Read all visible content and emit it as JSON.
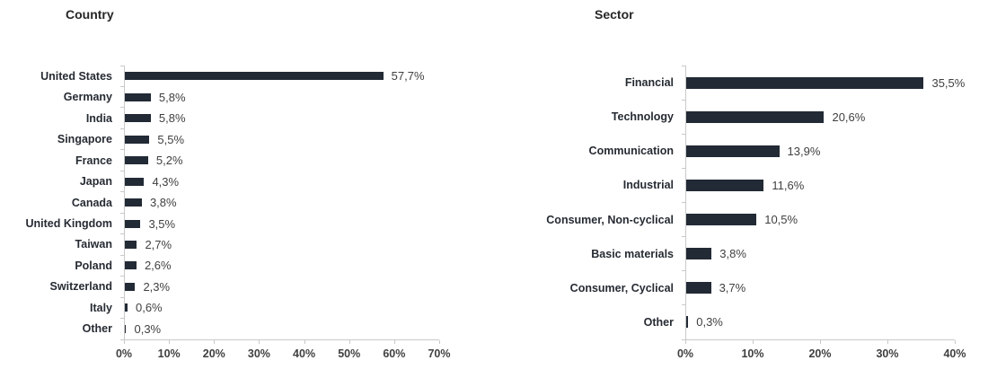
{
  "chart_data": [
    {
      "type": "bar",
      "orientation": "horizontal",
      "title": "Country",
      "categories": [
        "United States",
        "Germany",
        "India",
        "Singapore",
        "France",
        "Japan",
        "Canada",
        "United Kingdom",
        "Taiwan",
        "Poland",
        "Switzerland",
        "Italy",
        "Other"
      ],
      "values": [
        57.7,
        5.8,
        5.8,
        5.5,
        5.2,
        4.3,
        3.8,
        3.5,
        2.7,
        2.6,
        2.3,
        0.6,
        0.3
      ],
      "value_labels": [
        "57,7%",
        "5,8%",
        "5,8%",
        "5,5%",
        "5,2%",
        "4,3%",
        "3,8%",
        "3,5%",
        "2,7%",
        "2,6%",
        "2,3%",
        "0,6%",
        "0,3%"
      ],
      "xlim": [
        0,
        70
      ],
      "x_ticks": [
        0,
        10,
        20,
        30,
        40,
        50,
        60,
        70
      ],
      "x_tick_labels": [
        "0%",
        "10%",
        "20%",
        "30%",
        "40%",
        "50%",
        "60%",
        "70%"
      ],
      "grid": false,
      "legend": false,
      "bar_color": "#222a35"
    },
    {
      "type": "bar",
      "orientation": "horizontal",
      "title": "Sector",
      "categories": [
        "Financial",
        "Technology",
        "Communication",
        "Industrial",
        "Consumer, Non-cyclical",
        "Basic materials",
        "Consumer, Cyclical",
        "Other"
      ],
      "values": [
        35.5,
        20.6,
        13.9,
        11.6,
        10.5,
        3.8,
        3.7,
        0.3
      ],
      "value_labels": [
        "35,5%",
        "20,6%",
        "13,9%",
        "11,6%",
        "10,5%",
        "3,8%",
        "3,7%",
        "0,3%"
      ],
      "xlim": [
        0,
        40
      ],
      "x_ticks": [
        0,
        10,
        20,
        30,
        40
      ],
      "x_tick_labels": [
        "0%",
        "10%",
        "20%",
        "30%",
        "40%"
      ],
      "grid": false,
      "legend": false,
      "bar_color": "#222a35"
    }
  ],
  "colors": {
    "bar": "#222a35",
    "axis_line": "#c9c9c9",
    "category_text": "#262b33",
    "value_text": "#404040",
    "title_text": "#262626",
    "background": "#ffffff"
  }
}
